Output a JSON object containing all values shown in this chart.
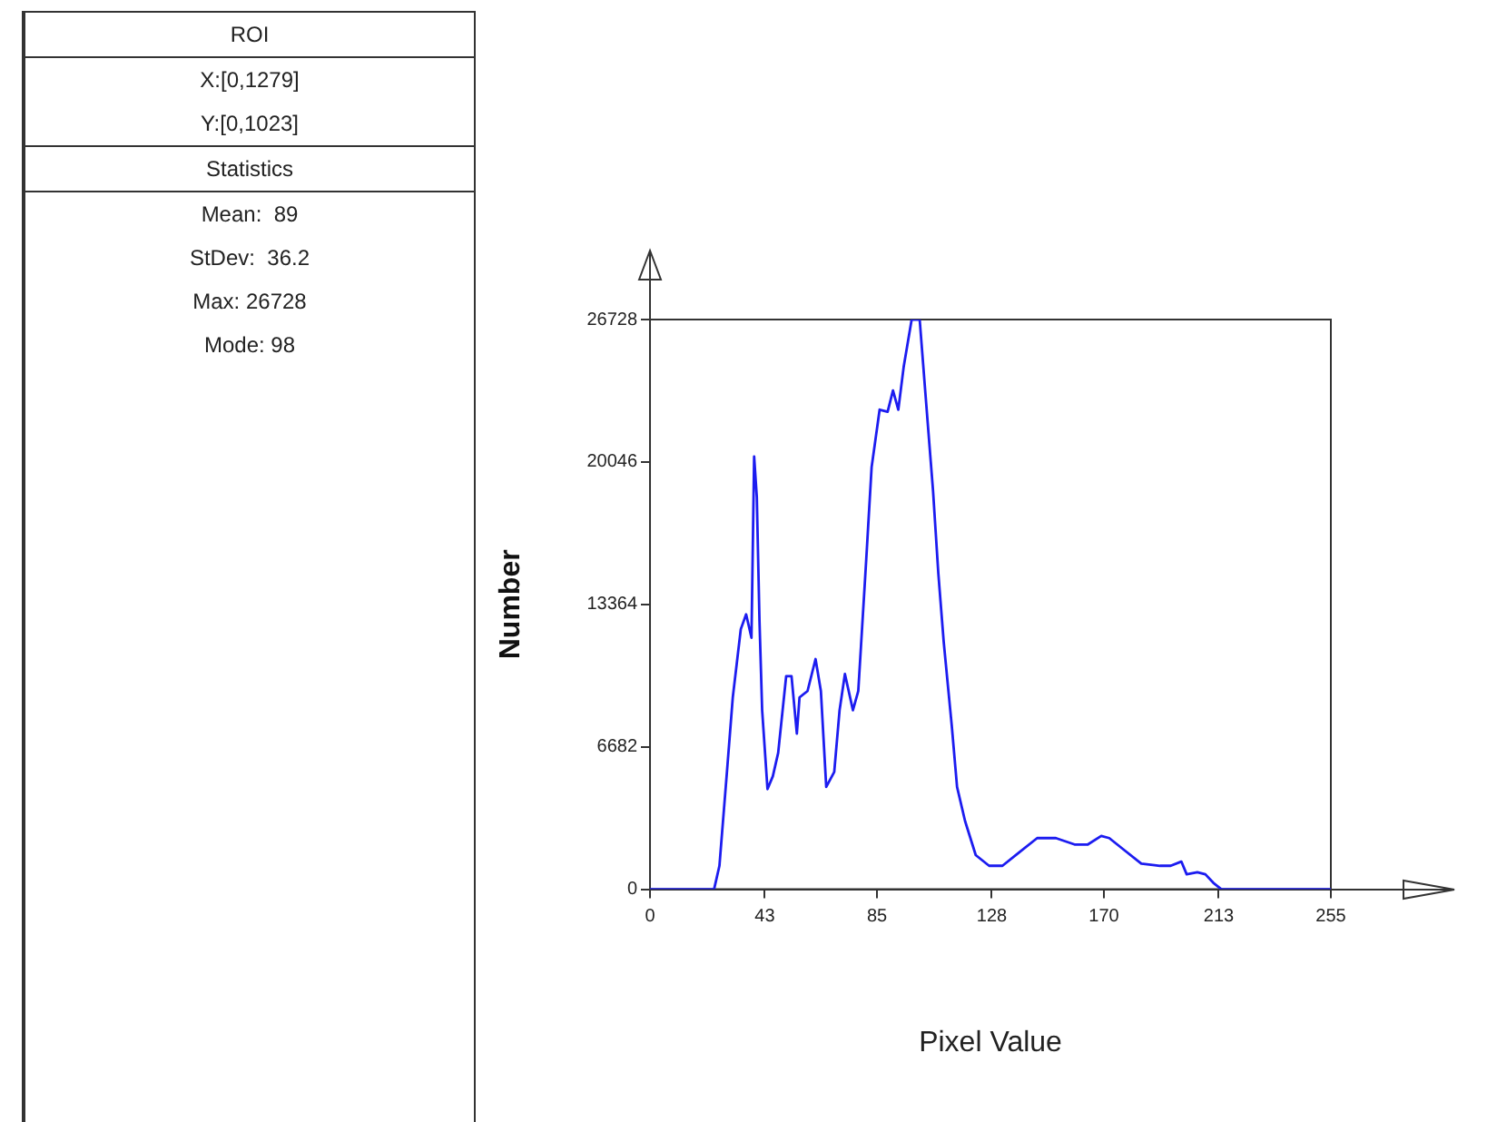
{
  "chart_data": {
    "type": "line",
    "xlabel": "Pixel Value",
    "ylabel": "Number",
    "x": [
      0,
      24,
      26,
      29,
      31,
      34,
      36,
      38,
      39,
      40,
      41,
      42,
      44,
      46,
      48,
      51,
      53,
      55,
      56,
      59,
      62,
      64,
      66,
      69,
      71,
      73,
      76,
      78,
      81,
      83,
      86,
      89,
      91,
      93,
      95,
      98,
      101,
      103,
      106,
      108,
      110,
      113,
      115,
      118,
      122,
      127,
      132,
      138,
      145,
      152,
      159,
      164,
      169,
      172,
      177,
      184,
      191,
      195,
      199,
      201,
      205,
      208,
      211,
      214,
      255
    ],
    "series": [
      {
        "color": "#1c1cf0",
        "values": [
          0,
          0,
          1100,
          5800,
          9000,
          12200,
          12900,
          11800,
          20300,
          18400,
          12600,
          8400,
          4700,
          5300,
          6400,
          10000,
          10000,
          7300,
          9000,
          9300,
          10800,
          9300,
          4800,
          5500,
          8400,
          10100,
          8400,
          9300,
          15500,
          19800,
          22500,
          22400,
          23400,
          22500,
          24500,
          26728,
          26728,
          23500,
          18700,
          14800,
          11600,
          7700,
          4800,
          3200,
          1600,
          1100,
          1100,
          1700,
          2400,
          2400,
          2100,
          2100,
          2500,
          2400,
          1900,
          1200,
          1100,
          1100,
          1300,
          700,
          800,
          700,
          300,
          0,
          0
        ]
      }
    ],
    "xlim": [
      0,
      255
    ],
    "xticks": [
      0,
      43,
      85,
      128,
      170,
      213,
      255
    ],
    "ylim": [
      0,
      26728
    ],
    "yticks": [
      0,
      6682,
      13364,
      20046,
      26728
    ],
    "grid": false,
    "marker": "none",
    "line_style": "solid",
    "annotations": [
      "ROI",
      "X:[0,1279]",
      "Y:[0,1023]",
      "Statistics",
      "Mean:  89",
      "StDev:  36.2",
      "Max: 26728",
      "Mode: 98"
    ]
  }
}
